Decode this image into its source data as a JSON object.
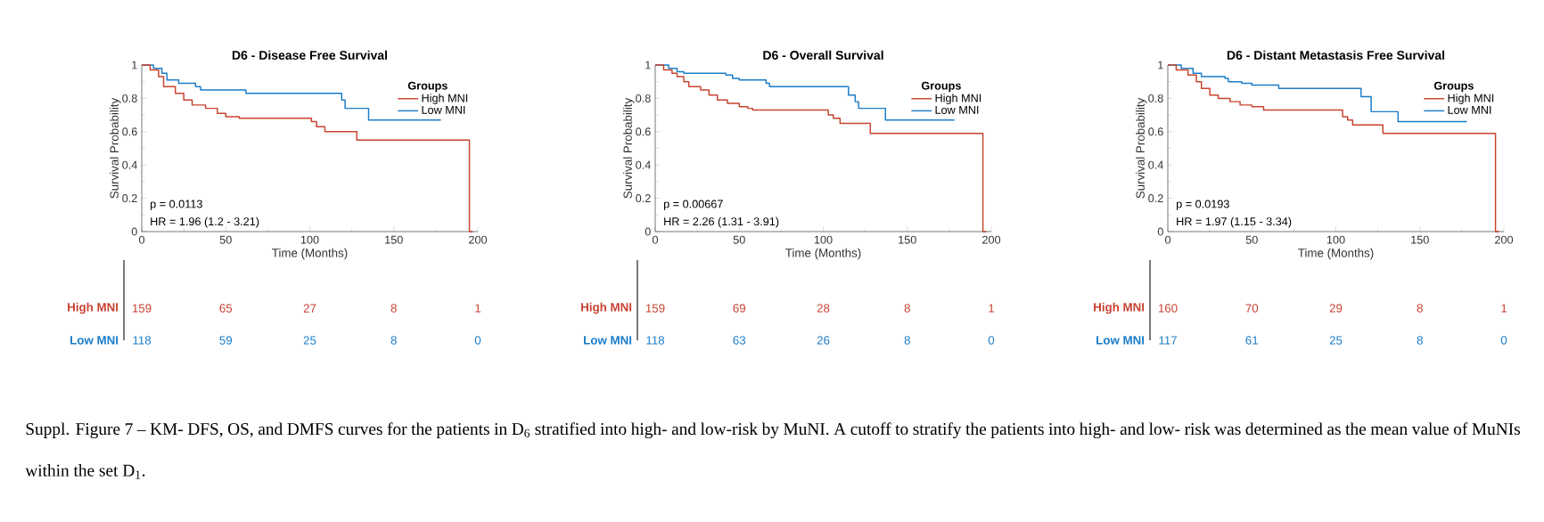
{
  "chart_data": [
    {
      "type": "step",
      "title": "D6 - Disease Free Survival",
      "xlabel": "Time (Months)",
      "ylabel": "Survival Probability",
      "legend_title": "Groups",
      "legend": "top right",
      "xlim": [
        0,
        200
      ],
      "xticks": [
        0,
        50,
        100,
        150,
        200
      ],
      "ylim": [
        0,
        1
      ],
      "yticks": [
        0,
        0.2,
        0.4,
        0.6,
        0.8,
        1
      ],
      "annotations": [
        "p = 0.0113",
        "HR = 1.96 (1.2 - 3.21)"
      ],
      "series": [
        {
          "name": "High MNI",
          "color": "#c8432f",
          "x": [
            0,
            5,
            10,
            13,
            20,
            25,
            30,
            38,
            45,
            50,
            58,
            101,
            104,
            109,
            128,
            195,
            197
          ],
          "values": [
            1,
            0.97,
            0.93,
            0.87,
            0.83,
            0.79,
            0.76,
            0.74,
            0.71,
            0.69,
            0.68,
            0.66,
            0.63,
            0.6,
            0.55,
            0,
            0
          ]
        },
        {
          "name": "Low MNI",
          "color": "#1a7dc9",
          "x": [
            0,
            7,
            12,
            15,
            22,
            32,
            35,
            62,
            119,
            121,
            135,
            178
          ],
          "values": [
            1,
            0.98,
            0.95,
            0.91,
            0.89,
            0.87,
            0.85,
            0.83,
            0.79,
            0.74,
            0.67,
            0.67
          ]
        }
      ]
    },
    {
      "type": "step",
      "title": "D6 - Overall Survival",
      "xlabel": "Time (Months)",
      "ylabel": "Survival Probability",
      "legend_title": "Groups",
      "legend": "top right",
      "xlim": [
        0,
        200
      ],
      "xticks": [
        0,
        50,
        100,
        150,
        200
      ],
      "ylim": [
        0,
        1
      ],
      "yticks": [
        0,
        0.2,
        0.4,
        0.6,
        0.8,
        1
      ],
      "annotations": [
        "p = 0.00667",
        "HR = 2.26 (1.31 - 3.91)"
      ],
      "series": [
        {
          "name": "High MNI",
          "color": "#c8432f",
          "x": [
            0,
            5,
            10,
            13,
            17,
            20,
            27,
            32,
            37,
            43,
            50,
            55,
            58,
            103,
            106,
            110,
            128,
            195,
            197
          ],
          "values": [
            1,
            0.97,
            0.95,
            0.93,
            0.9,
            0.87,
            0.85,
            0.82,
            0.79,
            0.77,
            0.75,
            0.74,
            0.73,
            0.7,
            0.68,
            0.65,
            0.59,
            0,
            0
          ]
        },
        {
          "name": "Low MNI",
          "color": "#1a7dc9",
          "x": [
            0,
            8,
            13,
            17,
            42,
            46,
            50,
            66,
            68,
            115,
            119,
            121,
            137,
            178
          ],
          "values": [
            1,
            0.98,
            0.96,
            0.95,
            0.94,
            0.92,
            0.91,
            0.89,
            0.87,
            0.82,
            0.78,
            0.74,
            0.67,
            0.67
          ]
        }
      ]
    },
    {
      "type": "step",
      "title": "D6 - Distant Metastasis Free Survival",
      "xlabel": "Time (Months)",
      "ylabel": "Survival Probability",
      "legend_title": "Groups",
      "legend": "top right",
      "xlim": [
        0,
        200
      ],
      "xticks": [
        0,
        50,
        100,
        150,
        200
      ],
      "ylim": [
        0,
        1
      ],
      "yticks": [
        0,
        0.2,
        0.4,
        0.6,
        0.8,
        1
      ],
      "annotations": [
        "p = 0.0193",
        "HR = 1.97 (1.15 - 3.34)"
      ],
      "series": [
        {
          "name": "High MNI",
          "color": "#c8432f",
          "x": [
            0,
            5,
            12,
            17,
            20,
            25,
            30,
            37,
            43,
            50,
            57,
            104,
            107,
            110,
            128,
            195,
            197
          ],
          "values": [
            1,
            0.97,
            0.94,
            0.9,
            0.86,
            0.82,
            0.8,
            0.78,
            0.76,
            0.75,
            0.73,
            0.69,
            0.67,
            0.64,
            0.59,
            0,
            0
          ]
        },
        {
          "name": "Low MNI",
          "color": "#1a7dc9",
          "x": [
            0,
            8,
            15,
            20,
            34,
            36,
            44,
            50,
            66,
            115,
            121,
            137,
            178
          ],
          "values": [
            1,
            0.98,
            0.95,
            0.93,
            0.92,
            0.9,
            0.89,
            0.88,
            0.86,
            0.81,
            0.72,
            0.66,
            0.66
          ]
        }
      ]
    },
    {
      "type": "other",
      "annotations": [
        "High MNI",
        "159",
        "65",
        "27",
        "8",
        "1",
        "Low MNI",
        "118",
        "59",
        "25",
        "8",
        "0"
      ]
    },
    {
      "type": "other",
      "annotations": [
        "High MNI",
        "159",
        "69",
        "28",
        "8",
        "1",
        "Low MNI",
        "118",
        "63",
        "26",
        "8",
        "0"
      ]
    },
    {
      "type": "other",
      "annotations": [
        "High MNI",
        "160",
        "70",
        "29",
        "8",
        "1",
        "Low MNI",
        "117",
        "61",
        "25",
        "8",
        "0"
      ]
    },
    {
      "type": "other",
      "annotations": [
        "Suppl. Figure 7 – KM- DFS, OS, and DMFS curves for the patients in D$_{6}$ stratified into high- and low-risk by MuNI. A cutoff to stratify the patients into high- and low- risk was determined as the mean value of MuNIs within the set D$_{1}$."
      ]
    }
  ]
}
